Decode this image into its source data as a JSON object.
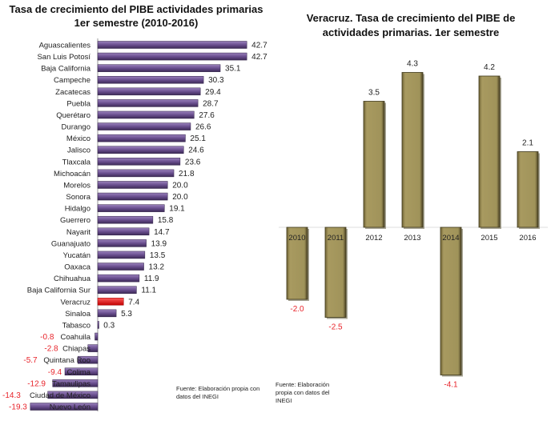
{
  "chart_data": [
    {
      "type": "bar",
      "orientation": "horizontal",
      "title": [
        "Tasa de crecimiento del PIBE actividades primarias",
        "1er semestre  (2010-2016)"
      ],
      "categories": [
        "Aguascalientes",
        "San Luis Potosí",
        "Baja California",
        "Campeche",
        "Zacatecas",
        "Puebla",
        "Querétaro",
        "Durango",
        "México",
        "Jalisco",
        "Tlaxcala",
        "Michoacán",
        "Morelos",
        "Sonora",
        "Hidalgo",
        "Guerrero",
        "Nayarit",
        "Guanajuato",
        "Yucatán",
        "Oaxaca",
        "Chihuahua",
        "Baja California Sur",
        "Veracruz",
        "Sinaloa",
        "Tabasco",
        "Coahuila",
        "Chiapas",
        "Quintana Roo",
        "Colima",
        "Tamaulipas",
        "Ciudad de México",
        "Nuevo León"
      ],
      "values": [
        42.7,
        42.7,
        35.1,
        30.3,
        29.4,
        28.7,
        27.6,
        26.6,
        25.1,
        24.6,
        23.6,
        21.8,
        20.0,
        20.0,
        19.1,
        15.8,
        14.7,
        13.9,
        13.5,
        13.2,
        11.9,
        11.1,
        7.4,
        5.3,
        0.3,
        -0.8,
        -2.8,
        -5.7,
        -9.4,
        -12.9,
        -14.3,
        -19.3
      ],
      "highlight": "Veracruz",
      "colors": {
        "bar": "#6a4f8f",
        "highlight": "#e8161b",
        "negative_label": "#e8242b"
      },
      "note": "Fuente: Elaboración propia con datos del INEGI",
      "note_lines": [
        "Fuente: Elaboración propia con",
        "datos del INEGI"
      ]
    },
    {
      "type": "bar",
      "title": [
        "Veracruz. Tasa de crecimiento del PIBE de",
        "actividades primarias. 1er semestre"
      ],
      "categories": [
        "2010",
        "2011",
        "2012",
        "2013",
        "2014",
        "2015",
        "2016"
      ],
      "values": [
        -2.0,
        -2.5,
        3.5,
        4.3,
        -4.1,
        4.2,
        2.1
      ],
      "colors": {
        "bar": "#a0935a",
        "negative_label": "#e8242b"
      },
      "note_lines": [
        "Fuente: Elaboración",
        "propia con datos del",
        "INEGI"
      ]
    }
  ]
}
